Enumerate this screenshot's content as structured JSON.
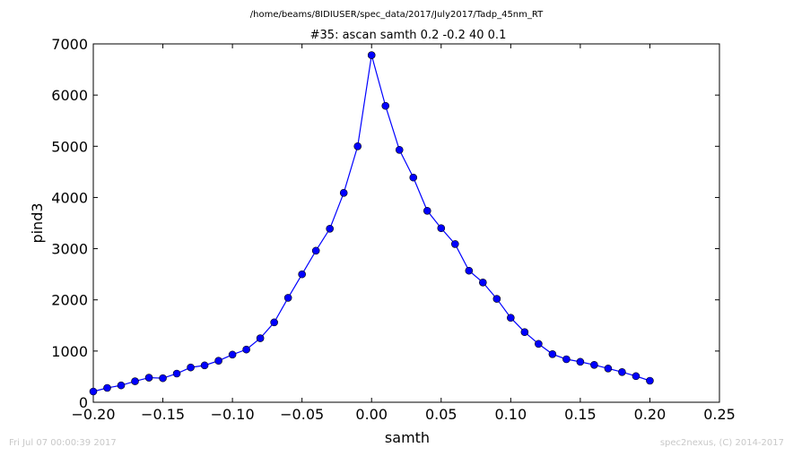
{
  "chart_data": {
    "type": "line",
    "suptitle": "/home/beams/8IDIUSER/spec_data/2017/July2017/Tadp_45nm_RT",
    "title": "#35: ascan  samth 0.2 -0.2  40 0.1",
    "xlabel": "samth",
    "ylabel": "pind3",
    "xlim": [
      -0.2,
      0.25
    ],
    "ylim": [
      0,
      7000
    ],
    "xticks": [
      -0.2,
      -0.15,
      -0.1,
      -0.05,
      0.0,
      0.05,
      0.1,
      0.15,
      0.2,
      0.25
    ],
    "xtick_labels": [
      "−0.20",
      "−0.15",
      "−0.10",
      "−0.05",
      "0.00",
      "0.05",
      "0.10",
      "0.15",
      "0.20",
      "0.25"
    ],
    "yticks": [
      0,
      1000,
      2000,
      3000,
      4000,
      5000,
      6000,
      7000
    ],
    "ytick_labels": [
      "0",
      "1000",
      "2000",
      "3000",
      "4000",
      "5000",
      "6000",
      "7000"
    ],
    "grid": false,
    "color": "#0000ff",
    "series": [
      {
        "x": [
          -0.2,
          -0.19,
          -0.18,
          -0.17,
          -0.16,
          -0.15,
          -0.14,
          -0.13,
          -0.12,
          -0.11,
          -0.1,
          -0.09,
          -0.08,
          -0.07,
          -0.06,
          -0.05,
          -0.04,
          -0.03,
          -0.02,
          -0.01,
          0.0,
          0.01,
          0.02,
          0.03,
          0.04,
          0.05,
          0.06,
          0.07,
          0.08,
          0.09,
          0.1,
          0.11,
          0.12,
          0.13,
          0.14,
          0.15,
          0.16,
          0.17,
          0.18,
          0.19,
          0.2
        ],
        "y": [
          210,
          280,
          330,
          410,
          480,
          470,
          560,
          680,
          720,
          810,
          930,
          1030,
          1250,
          1560,
          2040,
          2500,
          2960,
          3390,
          4090,
          5000,
          6780,
          5790,
          4930,
          4390,
          3740,
          3400,
          3090,
          2570,
          2340,
          2020,
          1650,
          1370,
          1140,
          940,
          840,
          790,
          730,
          660,
          590,
          510,
          420
        ]
      }
    ]
  },
  "footer": {
    "timestamp": "Fri Jul 07 00:00:39 2017",
    "credit": "spec2nexus, (C) 2014-2017"
  }
}
